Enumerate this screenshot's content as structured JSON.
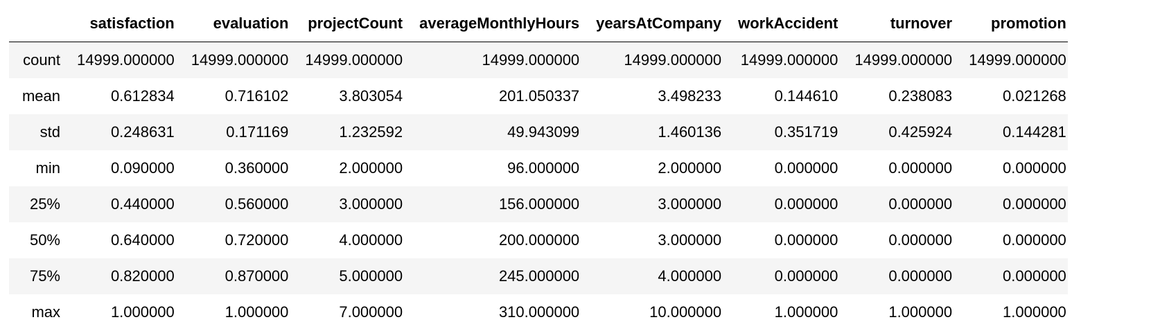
{
  "table": {
    "columns": [
      "satisfaction",
      "evaluation",
      "projectCount",
      "averageMonthlyHours",
      "yearsAtCompany",
      "workAccident",
      "turnover",
      "promotion"
    ],
    "rows": [
      {
        "label": "count",
        "values": [
          "14999.000000",
          "14999.000000",
          "14999.000000",
          "14999.000000",
          "14999.000000",
          "14999.000000",
          "14999.000000",
          "14999.000000"
        ]
      },
      {
        "label": "mean",
        "values": [
          "0.612834",
          "0.716102",
          "3.803054",
          "201.050337",
          "3.498233",
          "0.144610",
          "0.238083",
          "0.021268"
        ]
      },
      {
        "label": "std",
        "values": [
          "0.248631",
          "0.171169",
          "1.232592",
          "49.943099",
          "1.460136",
          "0.351719",
          "0.425924",
          "0.144281"
        ]
      },
      {
        "label": "min",
        "values": [
          "0.090000",
          "0.360000",
          "2.000000",
          "96.000000",
          "2.000000",
          "0.000000",
          "0.000000",
          "0.000000"
        ]
      },
      {
        "label": "25%",
        "values": [
          "0.440000",
          "0.560000",
          "3.000000",
          "156.000000",
          "3.000000",
          "0.000000",
          "0.000000",
          "0.000000"
        ]
      },
      {
        "label": "50%",
        "values": [
          "0.640000",
          "0.720000",
          "4.000000",
          "200.000000",
          "3.000000",
          "0.000000",
          "0.000000",
          "0.000000"
        ]
      },
      {
        "label": "75%",
        "values": [
          "0.820000",
          "0.870000",
          "5.000000",
          "245.000000",
          "4.000000",
          "0.000000",
          "0.000000",
          "0.000000"
        ]
      },
      {
        "label": "max",
        "values": [
          "1.000000",
          "1.000000",
          "7.000000",
          "310.000000",
          "10.000000",
          "1.000000",
          "1.000000",
          "1.000000"
        ]
      }
    ]
  }
}
